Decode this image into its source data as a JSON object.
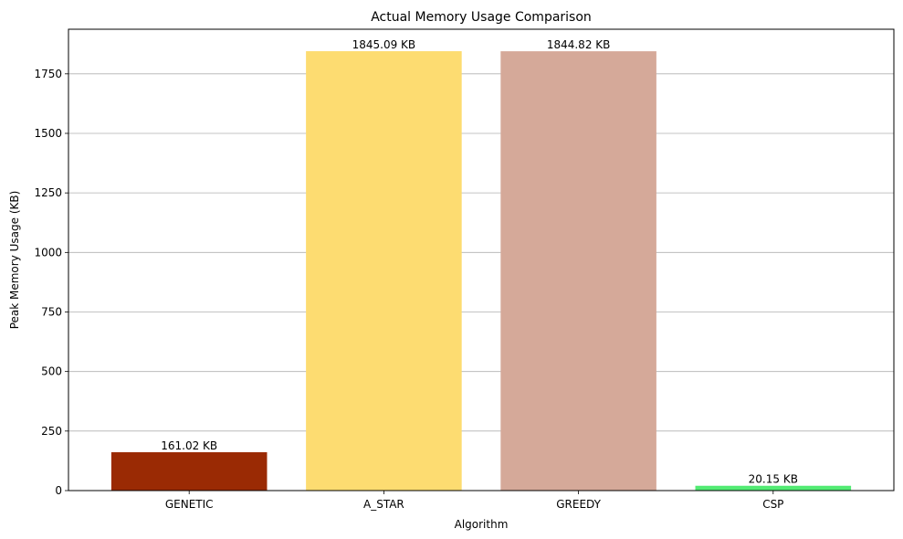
{
  "chart_data": {
    "type": "bar",
    "title": "Actual Memory Usage Comparison",
    "xlabel": "Algorithm",
    "ylabel": "Peak Memory Usage (KB)",
    "categories": [
      "GENETIC",
      "A_STAR",
      "GREEDY",
      "CSP"
    ],
    "values": [
      161.02,
      1845.09,
      1844.82,
      20.15
    ],
    "data_labels": [
      "161.02 KB",
      "1845.09 KB",
      "1844.82 KB",
      "20.15 KB"
    ],
    "colors": [
      "#9a2a04",
      "#fddc71",
      "#d5a999",
      "#52eb73"
    ],
    "ylim": [
      0,
      1937.3
    ],
    "yticks": [
      0,
      250,
      500,
      750,
      1000,
      1250,
      1500,
      1750
    ],
    "grid": "y-major",
    "legend": "none"
  }
}
